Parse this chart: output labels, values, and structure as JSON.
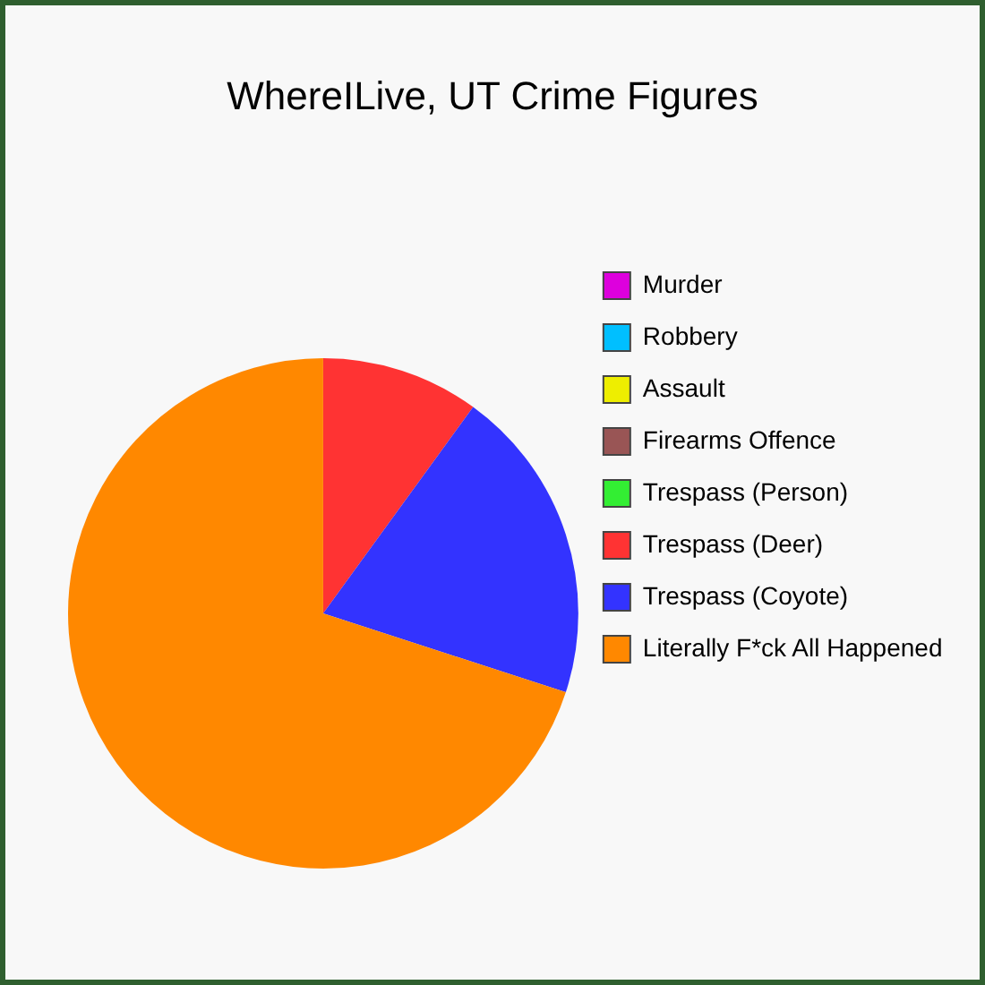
{
  "chart_data": {
    "type": "pie",
    "title": "WhereILive, UT Crime Figures",
    "categories": [
      "Murder",
      "Robbery",
      "Assault",
      "Firearms Offence",
      "Trespass (Person)",
      "Trespass (Deer)",
      "Trespass (Coyote)",
      "Literally F*ck All Happened"
    ],
    "values": [
      0,
      0,
      0,
      0,
      0,
      10,
      20,
      70
    ],
    "colors": [
      "#dd00dd",
      "#00bfff",
      "#eeee00",
      "#995555",
      "#33ee33",
      "#ff3333",
      "#3333ff",
      "#ff8800"
    ],
    "legend": "right"
  }
}
